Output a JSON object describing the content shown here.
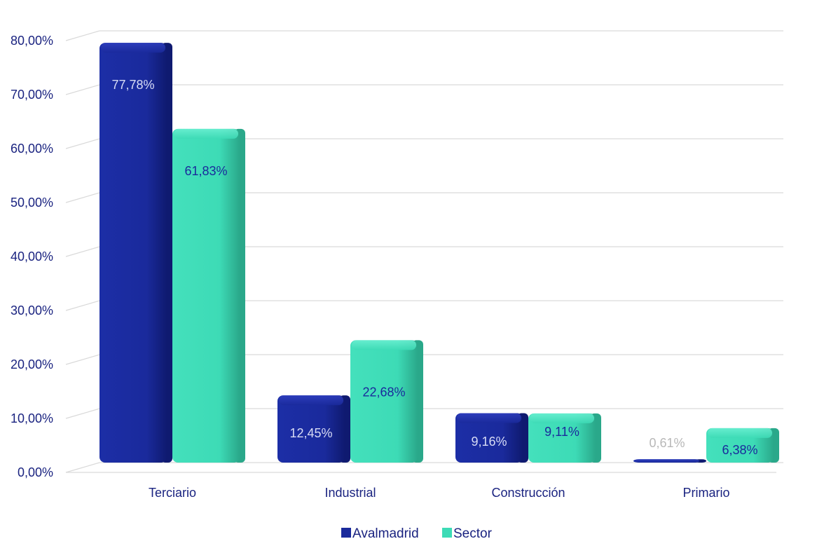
{
  "chart_data": {
    "type": "bar",
    "categories": [
      "Terciario",
      "Industrial",
      "Construcción",
      "Primario"
    ],
    "series": [
      {
        "name": "Avalmadrid",
        "values": [
          77.78,
          12.45,
          9.16,
          0.61
        ],
        "labels": [
          "77,78%",
          "12,45%",
          "9,16%",
          "0,61%"
        ],
        "color": "#1a2a9c",
        "label_colors": [
          "#d8dcf5",
          "#d8dcf5",
          "#d8dcf5",
          "#b8b8b8"
        ]
      },
      {
        "name": "Sector",
        "values": [
          61.83,
          22.68,
          9.11,
          6.38
        ],
        "labels": [
          "61,83%",
          "22,68%",
          "9,11%",
          "6,38%"
        ],
        "color": "#3ddbb6",
        "label_colors": [
          "#1a2a9c",
          "#1a2a9c",
          "#1a2a9c",
          "#1a2a9c"
        ]
      }
    ],
    "y_ticks": [
      "0,00%",
      "10,00%",
      "20,00%",
      "30,00%",
      "40,00%",
      "50,00%",
      "60,00%",
      "70,00%",
      "80,00%"
    ],
    "ylim": [
      0,
      80
    ],
    "title": "",
    "xlabel": "",
    "ylabel": "",
    "grid": true,
    "legend_position": "bottom"
  },
  "colors": {
    "axis_text": "#1a2380",
    "grid": "#d9d9d9"
  }
}
